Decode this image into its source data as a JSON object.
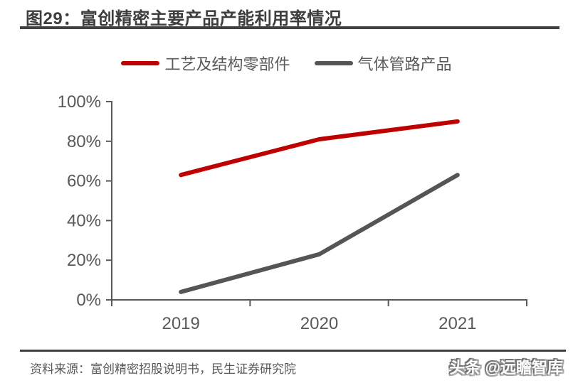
{
  "header": {
    "title": "图29：富创精密主要产品产能利用率情况"
  },
  "chart_data": {
    "type": "line",
    "title": "富创精密主要产品产能利用率情况",
    "categories": [
      "2019",
      "2020",
      "2021"
    ],
    "series": [
      {
        "name": "工艺及结构零部件",
        "values": [
          63,
          81,
          90
        ],
        "color": "#C00000"
      },
      {
        "name": "气体管路产品",
        "values": [
          4,
          23,
          63
        ],
        "color": "#555555"
      }
    ],
    "unit": "%",
    "ylim": [
      0,
      100
    ],
    "ytick_step": 20,
    "yticklabels": [
      "0%",
      "20%",
      "40%",
      "60%",
      "80%",
      "100%"
    ],
    "grid": false,
    "legend_position": "top",
    "axis_color": "#595959"
  },
  "footer": {
    "source": "资料来源：富创精密招股说明书，民生证券研究院",
    "watermark": "头条 @远瞻智库"
  }
}
